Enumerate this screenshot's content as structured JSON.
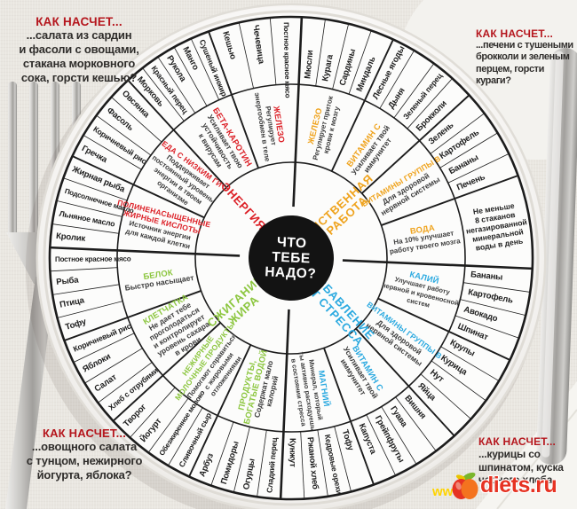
{
  "title": "ЧТО ТЕБЕ НАДО?",
  "center": {
    "lines": [
      "ЧТО",
      "ТЕБЕ",
      "НАДО?"
    ]
  },
  "colors": {
    "energy": "#dc1f26",
    "mental": "#efa31d",
    "stress": "#2aa9e0",
    "fat": "#8cc63f",
    "heading": "#b5161d",
    "line": "#1c1c1c",
    "desc": "#3d3d3d",
    "logo_red": "#e63323",
    "watermark_yellow": "#ffd400"
  },
  "sectors": [
    {
      "id": "mental-work",
      "label_lines": [
        "УМСТВЕННАЯ",
        "РАБОТА"
      ],
      "color_key": "mental",
      "start_angle": 0,
      "nutrients": [
        {
          "name_lines": [
            "ЖЕЛЕЗО"
          ],
          "desc_lines": [
            "Регулирует приток",
            "крови к мозгу"
          ],
          "foods": [
            "Мюсли",
            "Курага",
            "Сардины",
            "Миндаль"
          ]
        },
        {
          "name_lines": [
            "ВИТАМИН С"
          ],
          "desc_lines": [
            "Усиливает твой",
            "иммунитет"
          ],
          "foods": [
            "Лесные ягоды",
            "Дыня",
            "Зеленый перец",
            "Брокколи"
          ]
        },
        {
          "name_lines": [
            "ВИТАМИНЫ ГРУППЫ В"
          ],
          "desc_lines": [
            "Для здоровой",
            "нервной системы"
          ],
          "foods": [
            "Зелень",
            "Картофель",
            "Бананы",
            "Печень"
          ]
        },
        {
          "name_lines": [
            "ВОДА"
          ],
          "desc_lines": [
            "На 10% улучшает",
            "работу твоего мозга"
          ],
          "foods": [
            "Не меньше\n8 стаканов\nнегазированной\nминеральной\nводы в день"
          ]
        }
      ]
    },
    {
      "id": "stress-relief",
      "label_lines": [
        "ИЗБАВЛЕНИЕ",
        "ОТ СТРЕССА"
      ],
      "color_key": "stress",
      "start_angle": 90,
      "nutrients": [
        {
          "name_lines": [
            "КАЛИЙ"
          ],
          "desc_lines": [
            "Улучшает работу",
            "нервной и кровеносной",
            "систем"
          ],
          "foods": [
            "Бананы",
            "Картофель",
            "Авокадо",
            "Шпинат"
          ]
        },
        {
          "name_lines": [
            "ВИТАМИНЫ ГРУППЫ В"
          ],
          "desc_lines": [
            "Для здоровой",
            "нервной системы"
          ],
          "foods": [
            "Крупы",
            "Курица",
            "Нут",
            "Яйца"
          ]
        },
        {
          "name_lines": [
            "ВИТАМИН С"
          ],
          "desc_lines": [
            "Усиливает твой",
            "иммунитет"
          ],
          "foods": [
            "Вишня",
            "Гуава",
            "Грейпфруты",
            "Капуста"
          ]
        },
        {
          "name_lines": [
            "МАГНИЙ"
          ],
          "desc_lines": [
            "Минерал, который",
            "ты активно расходуешь",
            "в состоянии стресса"
          ],
          "foods": [
            "Тофу",
            "Кедровые орехи",
            "Ржаной хлеб",
            "Кунжут"
          ]
        }
      ]
    },
    {
      "id": "fat-burning",
      "label_lines": [
        "СЖИГАНИЕ",
        "ЖИРА"
      ],
      "color_key": "fat",
      "start_angle": 180,
      "nutrients": [
        {
          "name_lines": [
            "ПРОДУКТЫ,",
            "БОГАТЫЕ ВОДОЙ"
          ],
          "desc_lines": [
            "Содержат мало",
            "калорий"
          ],
          "foods": [
            "Сладкий перец",
            "Огурцы",
            "Помидоры",
            "Арбуз"
          ]
        },
        {
          "name_lines": [
            "НЕЖИРНЫЕ",
            "МОЛОЧНЫЕ ПРОДУКТЫ"
          ],
          "desc_lines": [
            "Помогают справиться",
            "с жировыми",
            "отложениями"
          ],
          "foods": [
            "Сливочный сыр",
            "Обезжиренное молоко",
            "Йогурт",
            "Творог"
          ]
        },
        {
          "name_lines": [
            "КЛЕТЧАТКА"
          ],
          "desc_lines": [
            "Не дает тебе",
            "проголодаться",
            "и контролирует",
            "уровень сахара",
            "в крови"
          ],
          "foods": [
            "Хлеб с отрубями",
            "Салат",
            "Яблоки",
            "Коричневый рис"
          ]
        },
        {
          "name_lines": [
            "БЕЛОК"
          ],
          "desc_lines": [
            "Быстро насыщает"
          ],
          "foods": [
            "Тофу",
            "Птица",
            "Рыба",
            "Постное красное мясо"
          ]
        }
      ]
    },
    {
      "id": "energy",
      "label_lines": [
        "ЭНЕРГИЯ"
      ],
      "color_key": "energy",
      "start_angle": 270,
      "nutrients": [
        {
          "name_lines": [
            "ПОЛИНЕНАСЫЩЕННЫЕ",
            "ЖИРНЫЕ КИСЛОТЫ"
          ],
          "desc_lines": [
            "Источник энергии",
            "для каждой клетки"
          ],
          "foods": [
            "Кролик",
            "Льняное масло",
            "Подсолнечное масло",
            "Жирная рыба"
          ]
        },
        {
          "name_lines": [
            "ЕДА С НИЗКИМ ГИ*"
          ],
          "desc_lines": [
            "Поддерживает",
            "постоянный уровень",
            "энергии в твоем",
            "организме"
          ],
          "foods": [
            "Гречка",
            "Коричневый рис",
            "Фасоль",
            "Овсянка"
          ]
        },
        {
          "name_lines": [
            "БЕТА-КАРОТИН"
          ],
          "desc_lines": [
            "Усиливает твою",
            "устойчивость",
            "к вирусам"
          ],
          "foods": [
            "Морковь",
            "Красный перец",
            "Рукола",
            "Манго",
            "Сушеный инжир"
          ]
        },
        {
          "name_lines": [
            "ЖЕЛЕЗО"
          ],
          "desc_lines": [
            "Регулирует",
            "энергообмен в теле"
          ],
          "foods": [
            "Кешью",
            "Чечевица",
            "Постное красное мясо"
          ]
        }
      ]
    }
  ],
  "corners": {
    "tl": {
      "heading": "КАК НАСЧЕТ...",
      "body": "...салата из сардин\nи фасоли с овощами,\nстакана морковного\nсока, горсти кешью?"
    },
    "tr": {
      "heading": "КАК НАСЧЕТ...",
      "body": "...печени с тушеными\nброкколи и зеленым\nперцем, горсти кураги?"
    },
    "bl": {
      "heading": "КАК НАСЧЕТ...",
      "body": "...овощного салата\nс тунцом, нежирного\nйогурта, яблока?"
    },
    "br": {
      "heading": "КАК НАСЧЕТ...",
      "body": "...курицы со\nшпинатом, куска\nчерного хлеба,"
    }
  },
  "logo": {
    "site": "diets.ru",
    "watermark": "www."
  }
}
